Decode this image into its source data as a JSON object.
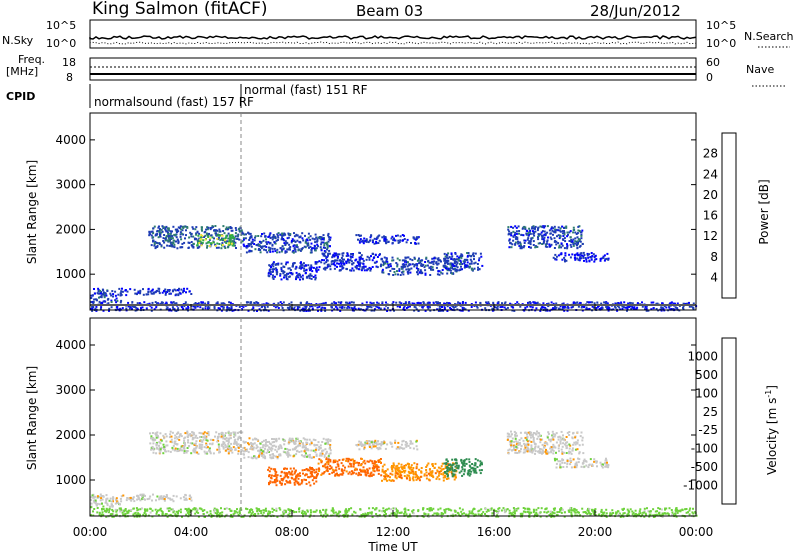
{
  "header": {
    "station": "King Salmon (fitACF)",
    "beam": "Beam 03",
    "date": "28/Jun/2012"
  },
  "time_axis": {
    "label": "Time UT",
    "ticks": [
      "00:00",
      "04:00",
      "08:00",
      "12:00",
      "16:00",
      "20:00",
      "00:00"
    ],
    "range_hours": [
      0,
      24
    ]
  },
  "noise_panel": {
    "left_label": "N.Sky",
    "right_label": "N.Search",
    "left_ticks": [
      "10^5",
      "10^0"
    ],
    "right_ticks": [
      "10^5",
      "10^0"
    ]
  },
  "freq_panel": {
    "left_label_1": "Freq.",
    "left_label_2": "[MHz]",
    "right_label": "Nave",
    "left_ticks": [
      "18",
      "8"
    ],
    "right_ticks": [
      "60",
      "0"
    ]
  },
  "cpid": {
    "label": "CPID",
    "segments": [
      {
        "text": "normalsound (fast) 157 RF",
        "start_hour": 0
      },
      {
        "text": "normal (fast) 151 RF",
        "start_hour": 6
      }
    ]
  },
  "chart_data": [
    {
      "type": "heatmap",
      "ylabel": "Slant Range [km]",
      "xlabel": "",
      "xlim": [
        0,
        24
      ],
      "ylim": [
        200,
        4600
      ],
      "yticks": [
        "1000",
        "2000",
        "3000",
        "4000"
      ],
      "ytick_values": [
        1000,
        2000,
        3000,
        4000
      ],
      "colorbar": {
        "label": "Power [dB]",
        "ticks": [
          "4",
          "8",
          "12",
          "16",
          "20",
          "24",
          "28"
        ],
        "tick_values": [
          4,
          8,
          12,
          16,
          20,
          24,
          28
        ],
        "range": [
          0,
          30
        ],
        "colors": [
          "#0000ff",
          "#1e3cb4",
          "#2e7d6e",
          "#2eaa46",
          "#f0e040",
          "#ffa800",
          "#ff7800",
          "#ff0000"
        ]
      },
      "regions": [
        {
          "t": [
            0.0,
            1.2
          ],
          "r": [
            400,
            700
          ],
          "value": 6
        },
        {
          "t": [
            1.2,
            4.0
          ],
          "r": [
            550,
            700
          ],
          "value": 5
        },
        {
          "t": [
            2.3,
            6.0
          ],
          "r": [
            1600,
            2100
          ],
          "value": 7
        },
        {
          "t": [
            4.2,
            5.7
          ],
          "r": [
            1650,
            1900
          ],
          "value": 15
        },
        {
          "t": [
            6.0,
            9.5
          ],
          "r": [
            1500,
            1950
          ],
          "value": 6
        },
        {
          "t": [
            7.0,
            9.0
          ],
          "r": [
            900,
            1300
          ],
          "value": 5
        },
        {
          "t": [
            9.0,
            11.5
          ],
          "r": [
            1100,
            1500
          ],
          "value": 5
        },
        {
          "t": [
            10.5,
            13.0
          ],
          "r": [
            1700,
            1900
          ],
          "value": 5
        },
        {
          "t": [
            11.5,
            14.5
          ],
          "r": [
            1000,
            1400
          ],
          "value": 6
        },
        {
          "t": [
            14.0,
            15.5
          ],
          "r": [
            1100,
            1500
          ],
          "value": 6
        },
        {
          "t": [
            16.5,
            19.5
          ],
          "r": [
            1600,
            2100
          ],
          "value": 6
        },
        {
          "t": [
            18.3,
            20.5
          ],
          "r": [
            1300,
            1500
          ],
          "value": 4
        },
        {
          "t": [
            0.0,
            24.0
          ],
          "r": [
            200,
            400
          ],
          "value": 4
        }
      ]
    },
    {
      "type": "heatmap",
      "ylabel": "Slant Range [km]",
      "xlabel": "Time UT",
      "xlim": [
        0,
        24
      ],
      "ylim": [
        200,
        4600
      ],
      "yticks": [
        "1000",
        "2000",
        "3000",
        "4000"
      ],
      "ytick_values": [
        1000,
        2000,
        3000,
        4000
      ],
      "colorbar": {
        "label": "Velocity [m s-1]",
        "label_main": "Velocity [m s",
        "label_sup": "-1",
        "label_end": "]",
        "ticks": [
          "1000",
          "500",
          "100",
          "25",
          "-25",
          "-100",
          "-500",
          "-1000"
        ],
        "tick_values": [
          1000,
          500,
          100,
          25,
          -25,
          -100,
          -500,
          -1000
        ],
        "range": [
          -1200,
          1200
        ],
        "colors": [
          "#1e1ec8",
          "#2e50aa",
          "#2e8c50",
          "#6ed23c",
          "#c8c8c8",
          "#ff9600",
          "#ff6400",
          "#ff1e1e",
          "#dc0000"
        ]
      },
      "regions": [
        {
          "t": [
            0.0,
            1.2
          ],
          "r": [
            400,
            700
          ],
          "value": 0
        },
        {
          "t": [
            1.2,
            4.0
          ],
          "r": [
            550,
            700
          ],
          "value": 0
        },
        {
          "t": [
            2.3,
            6.0
          ],
          "r": [
            1600,
            2100
          ],
          "value": 0
        },
        {
          "t": [
            6.0,
            9.5
          ],
          "r": [
            1500,
            1950
          ],
          "value": 0
        },
        {
          "t": [
            7.0,
            9.0
          ],
          "r": [
            900,
            1300
          ],
          "value": -150
        },
        {
          "t": [
            9.0,
            11.5
          ],
          "r": [
            1100,
            1500
          ],
          "value": -120
        },
        {
          "t": [
            10.5,
            13.0
          ],
          "r": [
            1700,
            1900
          ],
          "value": 0
        },
        {
          "t": [
            11.5,
            14.5
          ],
          "r": [
            1000,
            1400
          ],
          "value": -80
        },
        {
          "t": [
            14.0,
            15.5
          ],
          "r": [
            1100,
            1500
          ],
          "value": 150
        },
        {
          "t": [
            16.5,
            19.5
          ],
          "r": [
            1600,
            2100
          ],
          "value": 0
        },
        {
          "t": [
            18.3,
            20.5
          ],
          "r": [
            1300,
            1500
          ],
          "value": 0
        },
        {
          "t": [
            0.0,
            24.0
          ],
          "r": [
            200,
            400
          ],
          "value": 50
        }
      ]
    }
  ]
}
